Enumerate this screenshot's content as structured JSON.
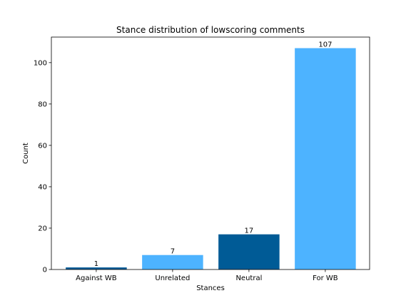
{
  "chart_data": {
    "type": "bar",
    "title": "Stance distribution of lowscoring comments",
    "xlabel": "Stances",
    "ylabel": "Count",
    "categories": [
      "Against WB",
      "Unrelated",
      "Neutral",
      "For WB"
    ],
    "values": [
      1,
      7,
      17,
      107
    ],
    "data_labels": [
      "1",
      "7",
      "17",
      "107"
    ],
    "bar_colors": [
      "#005b96",
      "#4db3ff",
      "#005b96",
      "#4db3ff"
    ],
    "ylim": [
      0,
      112.35
    ],
    "yticks": [
      0,
      20,
      40,
      60,
      80,
      100
    ],
    "ytick_labels": [
      "0",
      "20",
      "40",
      "60",
      "80",
      "100"
    ],
    "grid": false,
    "legend": "none"
  }
}
